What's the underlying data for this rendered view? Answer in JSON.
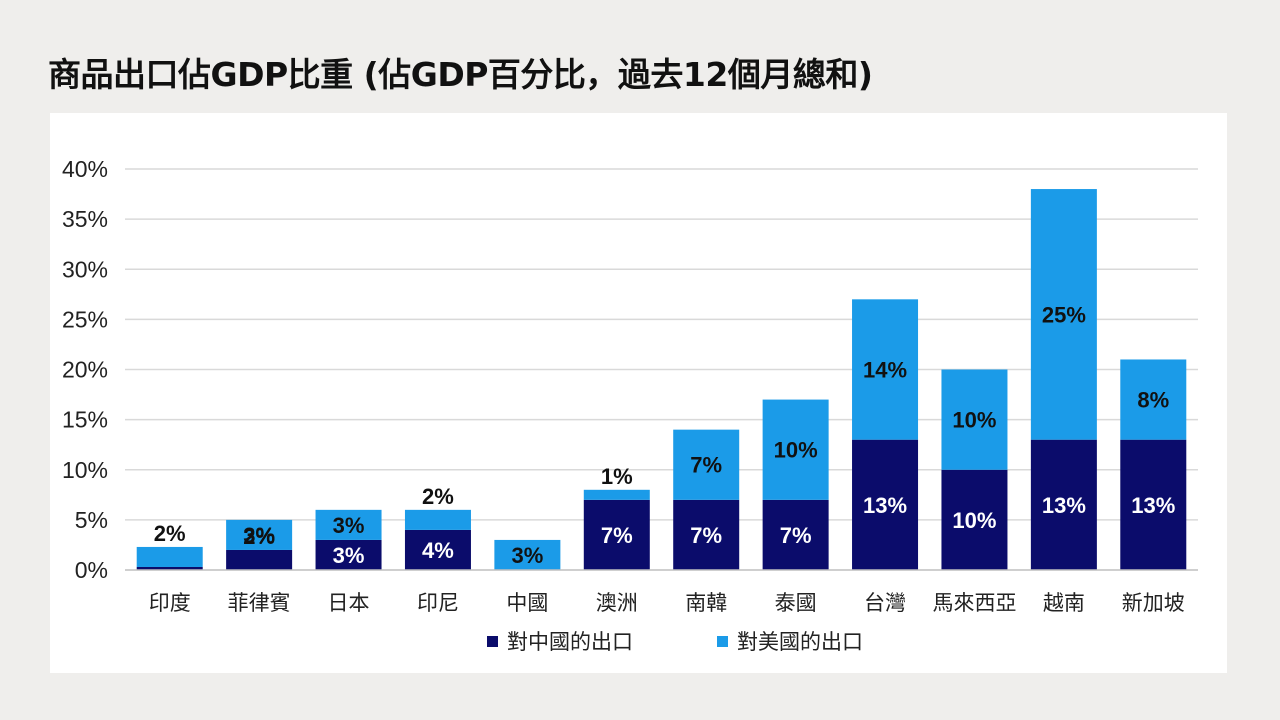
{
  "header": {
    "title": "商品出口佔GDP比重 (佔GDP百分比，過去12個月總和)"
  },
  "chart_data": {
    "type": "bar",
    "stacked": true,
    "title": "商品出口佔GDP比重 (佔GDP百分比，過去12個月總和)",
    "xlabel": "",
    "ylabel": "",
    "ylim": [
      0,
      40
    ],
    "yticks": [
      0,
      5,
      10,
      15,
      20,
      25,
      30,
      35,
      40
    ],
    "ytick_labels": [
      "0%",
      "5%",
      "10%",
      "15%",
      "20%",
      "25%",
      "30%",
      "35%",
      "40%"
    ],
    "grid": true,
    "legend_position": "bottom",
    "categories": [
      "印度",
      "菲律賓",
      "日本",
      "印尼",
      "中國",
      "澳洲",
      "南韓",
      "泰國",
      "台灣",
      "馬來西亞",
      "越南",
      "新加坡"
    ],
    "series": [
      {
        "name": "對中國的出口",
        "color": "#0b0c6b",
        "label_color": "#ffffff",
        "values": [
          0.3,
          2,
          3,
          4,
          0,
          7,
          7,
          7,
          13,
          10,
          13,
          13
        ],
        "labels": [
          "",
          "2%",
          "3%",
          "4%",
          "",
          "7%",
          "7%",
          "7%",
          "13%",
          "10%",
          "13%",
          "13%"
        ]
      },
      {
        "name": "對美國的出口",
        "color": "#1b9be8",
        "label_color": "#111111",
        "values": [
          2,
          3,
          3,
          2,
          3,
          1,
          7,
          10,
          14,
          10,
          25,
          8
        ],
        "labels": [
          "2%",
          "3%",
          "3%",
          "2%",
          "3%",
          "1%",
          "7%",
          "10%",
          "14%",
          "10%",
          "25%",
          "8%"
        ]
      }
    ]
  }
}
